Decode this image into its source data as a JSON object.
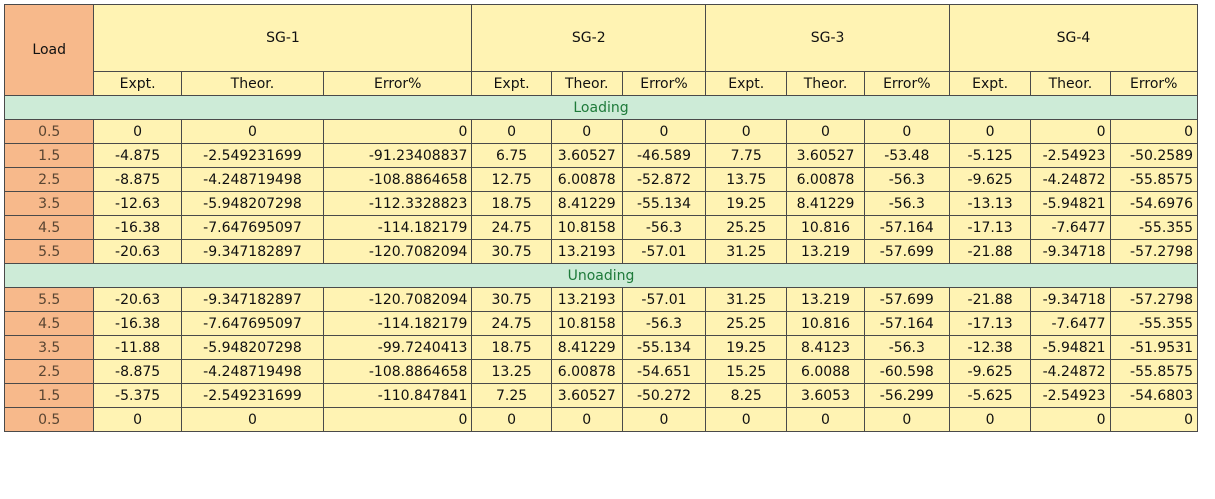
{
  "headers": {
    "load": "Load",
    "groups": [
      "SG-1",
      "SG-2",
      "SG-3",
      "SG-4"
    ],
    "sub": [
      "Expt.",
      "Theor.",
      "Error%",
      "Expt.",
      "Theor.",
      "Error%",
      "Expt.",
      "Theor.",
      "Error%",
      "Expt.",
      "Theor.",
      "Error%"
    ]
  },
  "sections": [
    {
      "title": "Loading",
      "rows": [
        [
          "0.5",
          "0",
          "0",
          "0",
          "0",
          "0",
          "0",
          "0",
          "0",
          "0",
          "0",
          "0",
          "0"
        ],
        [
          "1.5",
          "-4.875",
          "-2.549231699",
          "-91.23408837",
          "6.75",
          "3.60527",
          "-46.589",
          "7.75",
          "3.60527",
          "-53.48",
          "-5.125",
          "-2.54923",
          "-50.2589"
        ],
        [
          "2.5",
          "-8.875",
          "-4.248719498",
          "-108.8864658",
          "12.75",
          "6.00878",
          "-52.872",
          "13.75",
          "6.00878",
          "-56.3",
          "-9.625",
          "-4.24872",
          "-55.8575"
        ],
        [
          "3.5",
          "-12.63",
          "-5.948207298",
          "-112.3328823",
          "18.75",
          "8.41229",
          "-55.134",
          "19.25",
          "8.41229",
          "-56.3",
          "-13.13",
          "-5.94821",
          "-54.6976"
        ],
        [
          "4.5",
          "-16.38",
          "-7.647695097",
          "-114.182179",
          "24.75",
          "10.8158",
          "-56.3",
          "25.25",
          "10.816",
          "-57.164",
          "-17.13",
          "-7.6477",
          "-55.355"
        ],
        [
          "5.5",
          "-20.63",
          "-9.347182897",
          "-120.7082094",
          "30.75",
          "13.2193",
          "-57.01",
          "31.25",
          "13.219",
          "-57.699",
          "-21.88",
          "-9.34718",
          "-57.2798"
        ]
      ]
    },
    {
      "title": "Unoading",
      "rows": [
        [
          "5.5",
          "-20.63",
          "-9.347182897",
          "-120.7082094",
          "30.75",
          "13.2193",
          "-57.01",
          "31.25",
          "13.219",
          "-57.699",
          "-21.88",
          "-9.34718",
          "-57.2798"
        ],
        [
          "4.5",
          "-16.38",
          "-7.647695097",
          "-114.182179",
          "24.75",
          "10.8158",
          "-56.3",
          "25.25",
          "10.816",
          "-57.164",
          "-17.13",
          "-7.6477",
          "-55.355"
        ],
        [
          "3.5",
          "-11.88",
          "-5.948207298",
          "-99.7240413",
          "18.75",
          "8.41229",
          "-55.134",
          "19.25",
          "8.4123",
          "-56.3",
          "-12.38",
          "-5.94821",
          "-51.9531"
        ],
        [
          "2.5",
          "-8.875",
          "-4.248719498",
          "-108.8864658",
          "13.25",
          "6.00878",
          "-54.651",
          "15.25",
          "6.0088",
          "-60.598",
          "-9.625",
          "-4.24872",
          "-55.8575"
        ],
        [
          "1.5",
          "-5.375",
          "-2.549231699",
          "-110.847841",
          "7.25",
          "3.60527",
          "-50.272",
          "8.25",
          "3.6053",
          "-56.299",
          "-5.625",
          "-2.54923",
          "-54.6803"
        ],
        [
          "0.5",
          "0",
          "0",
          "0",
          "0",
          "0",
          "0",
          "0",
          "0",
          "0",
          "0",
          "0",
          "0"
        ]
      ]
    }
  ]
}
